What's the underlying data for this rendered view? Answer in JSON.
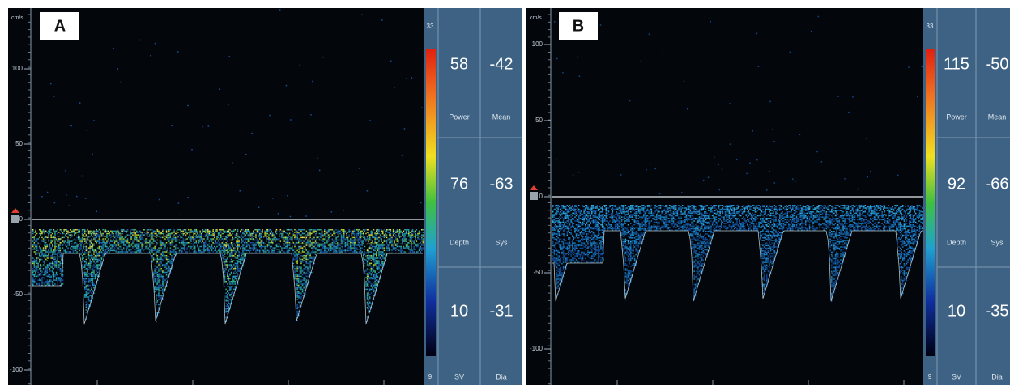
{
  "panels": [
    {
      "label": "A",
      "unit": "cm/s",
      "yticks": [
        100,
        50,
        0,
        -50,
        -100
      ],
      "scale_top": "33",
      "scale_bottom": "9",
      "readouts": [
        {
          "value": "58",
          "name": "Power"
        },
        {
          "value": "-42",
          "name": "Mean"
        },
        {
          "value": "76",
          "name": "Depth"
        },
        {
          "value": "-63",
          "name": "Sys"
        },
        {
          "value": "10",
          "name": "SV"
        },
        {
          "value": "-31",
          "name": "Dia"
        }
      ]
    },
    {
      "label": "B",
      "unit": "cm/s",
      "yticks": [
        100,
        50,
        0,
        -50,
        -100
      ],
      "scale_top": "33",
      "scale_bottom": "9",
      "readouts": [
        {
          "value": "115",
          "name": "Power"
        },
        {
          "value": "-50",
          "name": "Mean"
        },
        {
          "value": "92",
          "name": "Depth"
        },
        {
          "value": "-66",
          "name": "Sys"
        },
        {
          "value": "10",
          "name": "SV"
        },
        {
          "value": "-35",
          "name": "Dia"
        }
      ]
    }
  ]
}
